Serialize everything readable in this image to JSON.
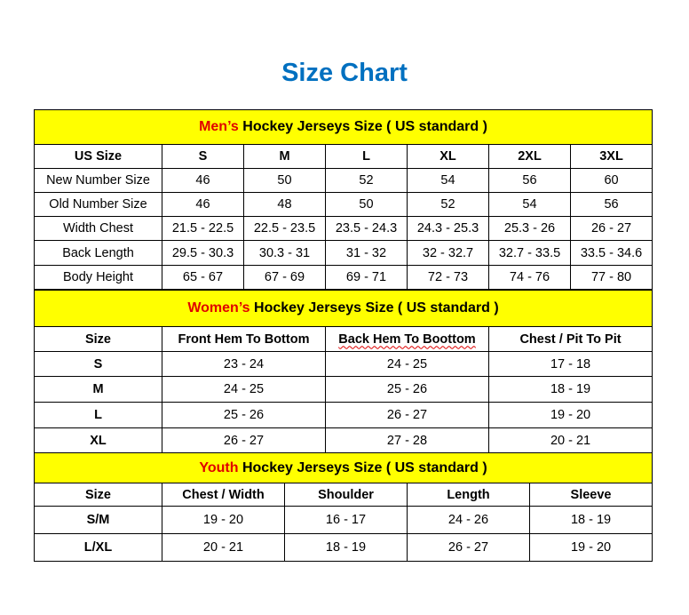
{
  "title": "Size Chart",
  "colors": {
    "title": "#0070C0",
    "header_bg": "#FFFF00",
    "accent": "#E00000"
  },
  "men": {
    "header_accent": "Men’s",
    "header_rest": " Hockey Jerseys Size ( US standard )",
    "columns": [
      "US Size",
      "S",
      "M",
      "L",
      "XL",
      "2XL",
      "3XL"
    ],
    "rows": [
      [
        "New Number Size",
        "46",
        "50",
        "52",
        "54",
        "56",
        "60"
      ],
      [
        "Old Number Size",
        "46",
        "48",
        "50",
        "52",
        "54",
        "56"
      ],
      [
        "Width Chest",
        "21.5 - 22.5",
        "22.5 - 23.5",
        "23.5 - 24.3",
        "24.3 - 25.3",
        "25.3 - 26",
        "26 - 27"
      ],
      [
        "Back Length",
        "29.5 - 30.3",
        "30.3 - 31",
        "31 - 32",
        "32 - 32.7",
        "32.7 - 33.5",
        "33.5 - 34.6"
      ],
      [
        "Body Height",
        "65 - 67",
        "67 - 69",
        "69 - 71",
        "72 - 73",
        "74 - 76",
        "77 - 80"
      ]
    ]
  },
  "women": {
    "header_accent": "Women’s",
    "header_rest": " Hockey Jerseys Size ( US standard )",
    "columns": [
      "Size",
      "Front Hem To Bottom",
      "Back Hem To Boottom",
      "Chest / Pit To Pit"
    ],
    "rows": [
      [
        "S",
        "23 - 24",
        "24 - 25",
        "17 - 18"
      ],
      [
        "M",
        "24 - 25",
        "25 - 26",
        "18 - 19"
      ],
      [
        "L",
        "25 - 26",
        "26 - 27",
        "19 - 20"
      ],
      [
        "XL",
        "26 - 27",
        "27 - 28",
        "20 - 21"
      ]
    ]
  },
  "youth": {
    "header_accent": "Youth",
    "header_rest": " Hockey Jerseys Size ( US standard )",
    "columns": [
      "Size",
      "Chest / Width",
      "Shoulder",
      "Length",
      "Sleeve"
    ],
    "rows": [
      [
        "S/M",
        "19 - 20",
        "16 - 17",
        "24 - 26",
        "18 - 19"
      ],
      [
        "L/XL",
        "20 - 21",
        "18 - 19",
        "26 - 27",
        "19 - 20"
      ]
    ]
  }
}
